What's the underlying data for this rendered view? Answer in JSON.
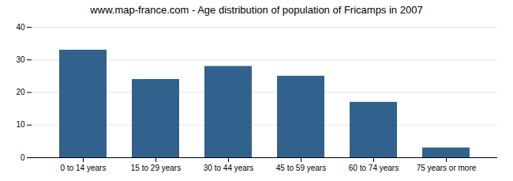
{
  "chart_data": {
    "type": "bar",
    "title": "www.map-france.com - Age distribution of population of Fricamps in 2007",
    "categories": [
      "0 to 14 years",
      "15 to 29 years",
      "30 to 44 years",
      "45 to 59 years",
      "60 to 74 years",
      "75 years or more"
    ],
    "values": [
      33,
      24,
      28,
      25,
      17,
      3
    ],
    "color": "#31628d",
    "ylim": [
      0,
      40
    ],
    "yticks": [
      0,
      10,
      20,
      30,
      40
    ],
    "grid": true
  }
}
